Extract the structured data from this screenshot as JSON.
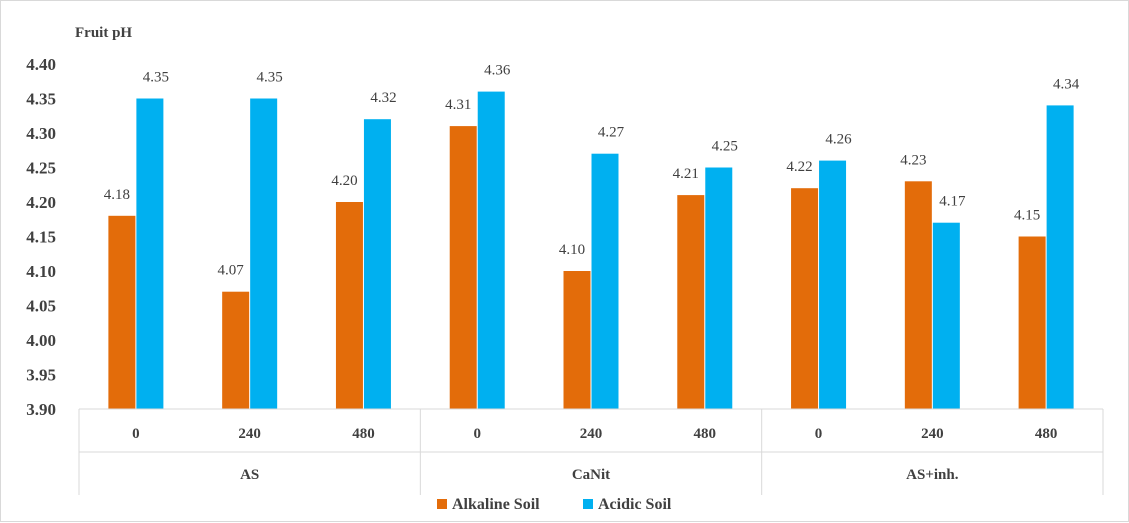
{
  "chart_data": {
    "type": "bar",
    "ylabel": "Fruit pH",
    "ylim": [
      3.9,
      4.4
    ],
    "yticks": [
      "3.90",
      "3.95",
      "4.00",
      "4.05",
      "4.10",
      "4.15",
      "4.20",
      "4.25",
      "4.30",
      "4.35",
      "4.40"
    ],
    "categories": [
      "0",
      "240",
      "480",
      "0",
      "240",
      "480",
      "0",
      "240",
      "480"
    ],
    "groups": [
      {
        "label": "AS",
        "span": 3
      },
      {
        "label": "CaNit",
        "span": 3
      },
      {
        "label": "AS+inh.",
        "span": 3
      }
    ],
    "series": [
      {
        "name": "Alkaline Soil",
        "color": "#e36c0a",
        "values": [
          4.18,
          4.07,
          4.2,
          4.31,
          4.1,
          4.21,
          4.22,
          4.23,
          4.15
        ],
        "labels": [
          "4.18",
          "4.07",
          "4.20",
          "4.31",
          "4.10",
          "4.21",
          "4.22",
          "4.23",
          "4.15"
        ]
      },
      {
        "name": "Acidic Soil",
        "color": "#00b0f0",
        "values": [
          4.35,
          4.35,
          4.32,
          4.36,
          4.27,
          4.25,
          4.26,
          4.17,
          4.34
        ],
        "labels": [
          "4.35",
          "4.35",
          "4.32",
          "4.36",
          "4.27",
          "4.25",
          "4.26",
          "4.17",
          "4.34"
        ]
      }
    ],
    "legend": "bottom",
    "grid": false
  }
}
